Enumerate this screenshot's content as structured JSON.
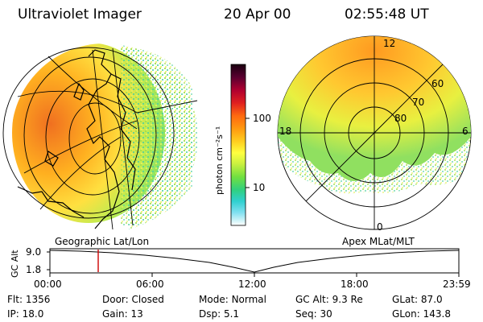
{
  "header": {
    "instrument": "Ultraviolet Imager",
    "date": "20 Apr 00",
    "time": "02:55:48 UT"
  },
  "colorbar": {
    "unit_label": "photon cm⁻²s⁻¹",
    "ticks": [
      "100",
      "10"
    ],
    "colors": [
      "#1a0010",
      "#5a0030",
      "#b00030",
      "#e02020",
      "#ff6a10",
      "#ff9a10",
      "#ffcf20",
      "#ffff40",
      "#c8f040",
      "#70e040",
      "#30d080",
      "#30d0d0",
      "#80e0f0",
      "#d0f4f8",
      "#ffffff"
    ]
  },
  "left_map": {
    "caption": "Geographic Lat/Lon"
  },
  "right_map": {
    "caption": "Apex MLat/MLT",
    "mlt_labels": [
      "12",
      "18",
      "6",
      "0"
    ],
    "mlat_labels": [
      "60",
      "70",
      "80"
    ]
  },
  "altitude_plot": {
    "ylabel": "GC Alt",
    "yticks": [
      "9.0",
      "1.8"
    ],
    "xticks": [
      "00:00",
      "06:00",
      "12:00",
      "18:00",
      "23:59"
    ],
    "current_time_marker": "02:55:48",
    "marker_color": "#cc0000"
  },
  "info": {
    "rows": [
      [
        {
          "label": "Flt:",
          "value": "1356"
        },
        {
          "label": "Door:",
          "value": "Closed"
        },
        {
          "label": "Mode:",
          "value": "Normal"
        },
        {
          "label": "GC Alt:",
          "value": "9.3 Re"
        },
        {
          "label": "GLat:",
          "value": "87.0"
        }
      ],
      [
        {
          "label": "IP:",
          "value": "18.0"
        },
        {
          "label": "Gain:",
          "value": "13"
        },
        {
          "label": "Dsp:",
          "value": "5.1"
        },
        {
          "label": "Seq:",
          "value": "30"
        },
        {
          "label": "GLon:",
          "value": "143.8"
        }
      ]
    ]
  }
}
